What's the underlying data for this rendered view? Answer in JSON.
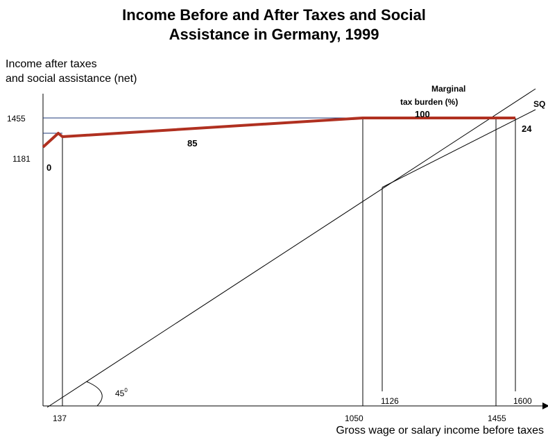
{
  "chart_data": {
    "type": "line",
    "title_line1": "Income Before and After Taxes and Social",
    "title_line2": "Assistance in Germany, 1999",
    "ylabel_line1": "Income after taxes",
    "ylabel_line2": "and social assistance (net)",
    "xlabel": "Gross wage or salary income before taxes",
    "x_ticks": [
      {
        "value": 137,
        "label": "137"
      },
      {
        "value": 1050,
        "label": "1050"
      },
      {
        "value": 1126,
        "label": "1126"
      },
      {
        "value": 1455,
        "label": "1455"
      },
      {
        "value": 1600,
        "label": "1600"
      }
    ],
    "y_ticks": [
      {
        "value": 1455,
        "label": "1455"
      },
      {
        "value": 1181,
        "label": "1181"
      }
    ],
    "series": [
      {
        "color": "#b03020",
        "points": [
          [
            0,
            1145
          ],
          [
            137,
            1181
          ],
          [
            1050,
            1455
          ],
          [
            1600,
            1455
          ]
        ]
      }
    ],
    "reference_lines": [
      {
        "label": "45°",
        "points": [
          [
            0,
            0
          ],
          [
            1600,
            1600
          ]
        ]
      },
      {
        "label": "SQ",
        "points": [
          [
            1126,
            1126
          ],
          [
            1600,
            1455
          ]
        ]
      }
    ],
    "marginal_tax_header_line1": "Marginal",
    "marginal_tax_header_line2": "tax burden (%)",
    "marginal_tax_labels": [
      "0",
      "85",
      "100",
      "24"
    ],
    "angle_label": "45",
    "angle_superscript": "0",
    "sq_label": "SQ"
  }
}
